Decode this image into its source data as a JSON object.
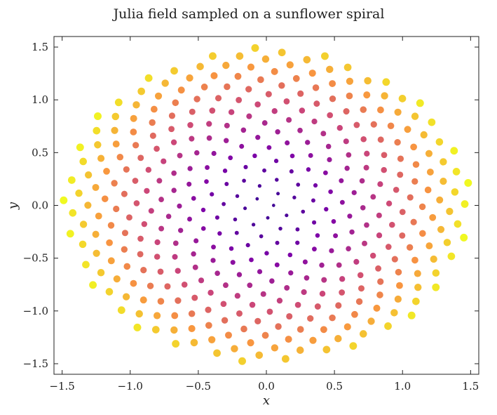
{
  "chart_data": {
    "type": "scatter",
    "title": "Julia field sampled on a sunflower spiral",
    "xlabel": "x",
    "ylabel": "y",
    "xlim": [
      -1.56,
      1.56
    ],
    "ylim": [
      -1.6,
      1.6
    ],
    "xticks": [
      -1.5,
      -1.0,
      -0.5,
      0.0,
      0.5,
      1.0,
      1.5
    ],
    "yticks": [
      -1.5,
      -1.0,
      -0.5,
      0.0,
      0.5,
      1.0,
      1.5
    ],
    "xtick_labels": [
      "−1.5",
      "−1.0",
      "−0.5",
      "0.0",
      "0.5",
      "1.0",
      "1.5"
    ],
    "ytick_labels": [
      "−1.5",
      "−1.0",
      "−0.5",
      "0.0",
      "0.5",
      "1.0",
      "1.5"
    ],
    "grid": false,
    "colormap": "plasma",
    "points": 400,
    "x_radius": 1.5,
    "y_radius": 1.5,
    "golden_angle_deg": 137.508
  }
}
